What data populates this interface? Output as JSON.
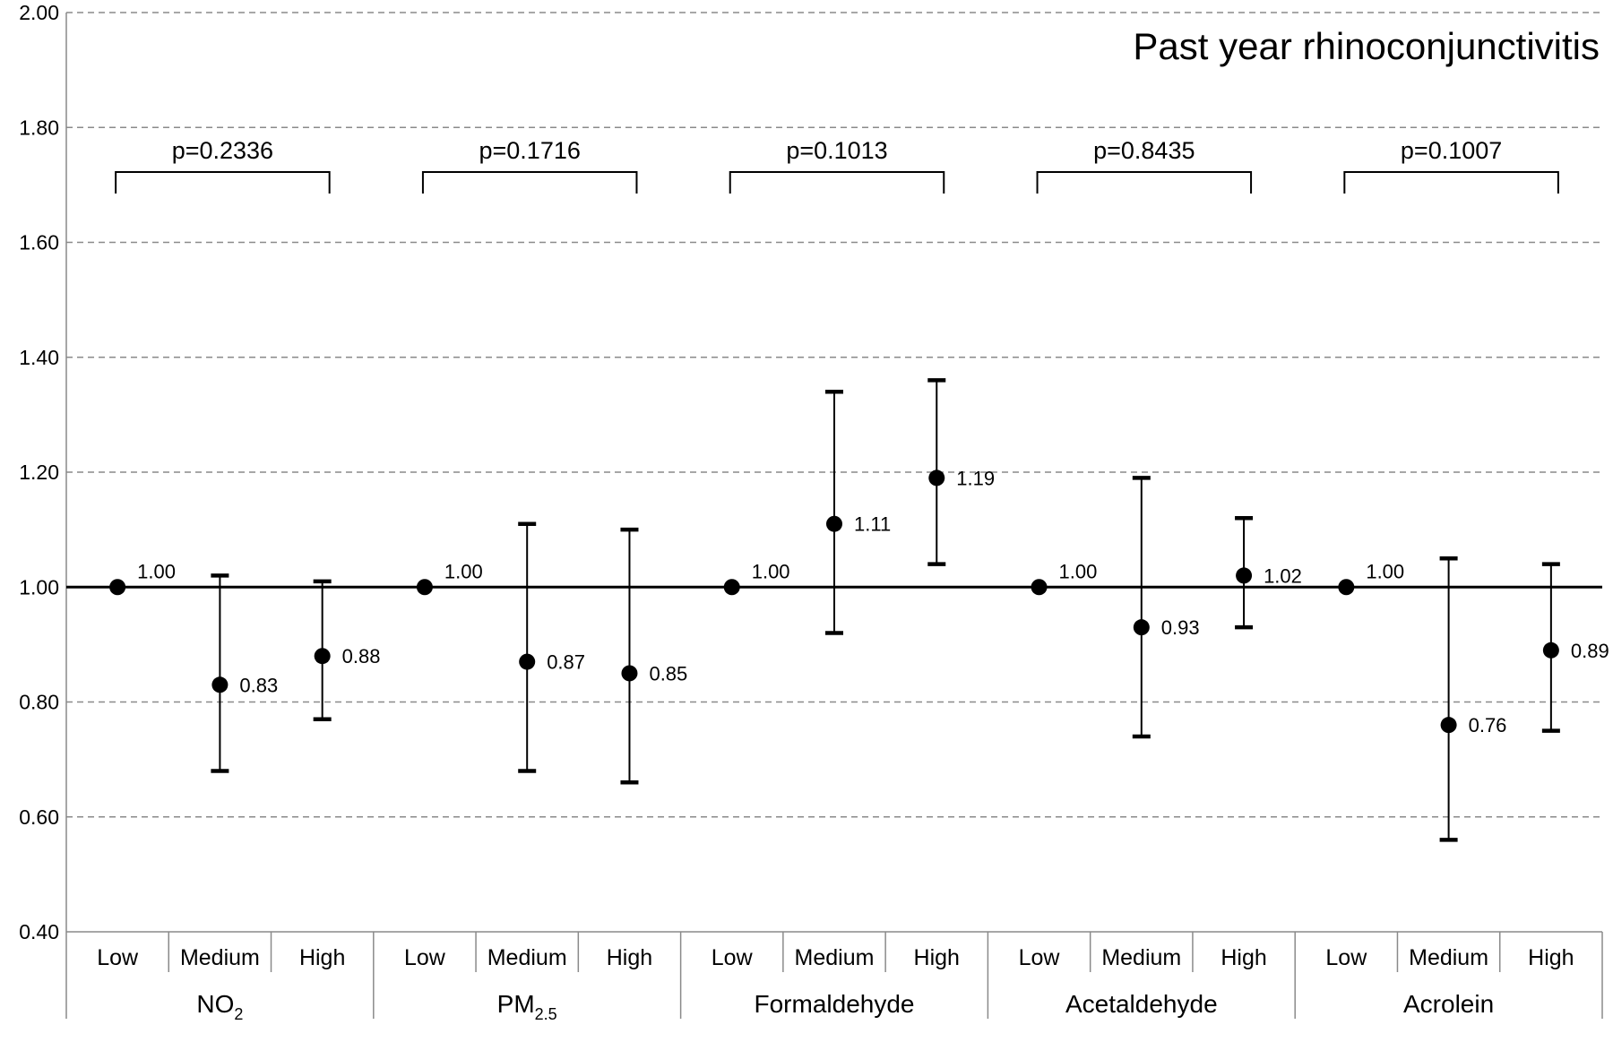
{
  "chart_data": {
    "type": "scatter",
    "title": "Past year rhinoconjunctivitis",
    "ylim": [
      0.4,
      2.0
    ],
    "yticks": [
      "0.40",
      "0.60",
      "0.80",
      "1.00",
      "1.20",
      "1.40",
      "1.60",
      "1.80",
      "2.00"
    ],
    "grid": true,
    "reference_line": 1.0,
    "levels": [
      "Low",
      "Medium",
      "High"
    ],
    "groups": [
      {
        "name": "NO",
        "subscript": "2",
        "p_value": "p=0.2336",
        "points": [
          {
            "level": "Low",
            "value": 1.0,
            "label": "1.00",
            "ci": null
          },
          {
            "level": "Medium",
            "value": 0.83,
            "label": "0.83",
            "ci": [
              0.68,
              1.02
            ]
          },
          {
            "level": "High",
            "value": 0.88,
            "label": "0.88",
            "ci": [
              0.77,
              1.01
            ]
          }
        ]
      },
      {
        "name": "PM",
        "subscript": "2.5",
        "p_value": "p=0.1716",
        "points": [
          {
            "level": "Low",
            "value": 1.0,
            "label": "1.00",
            "ci": null
          },
          {
            "level": "Medium",
            "value": 0.87,
            "label": "0.87",
            "ci": [
              0.68,
              1.11
            ]
          },
          {
            "level": "High",
            "value": 0.85,
            "label": "0.85",
            "ci": [
              0.66,
              1.1
            ]
          }
        ]
      },
      {
        "name": "Formaldehyde",
        "subscript": "",
        "p_value": "p=0.1013",
        "points": [
          {
            "level": "Low",
            "value": 1.0,
            "label": "1.00",
            "ci": null
          },
          {
            "level": "Medium",
            "value": 1.11,
            "label": "1.11",
            "ci": [
              0.92,
              1.34
            ]
          },
          {
            "level": "High",
            "value": 1.19,
            "label": "1.19",
            "ci": [
              1.04,
              1.36
            ]
          }
        ]
      },
      {
        "name": "Acetaldehyde",
        "subscript": "",
        "p_value": "p=0.8435",
        "points": [
          {
            "level": "Low",
            "value": 1.0,
            "label": "1.00",
            "ci": null
          },
          {
            "level": "Medium",
            "value": 0.93,
            "label": "0.93",
            "ci": [
              0.74,
              1.19
            ]
          },
          {
            "level": "High",
            "value": 1.02,
            "label": "1.02",
            "ci": [
              0.93,
              1.12
            ]
          }
        ]
      },
      {
        "name": "Acrolein",
        "subscript": "",
        "p_value": "p=0.1007",
        "points": [
          {
            "level": "Low",
            "value": 1.0,
            "label": "1.00",
            "ci": null
          },
          {
            "level": "Medium",
            "value": 0.76,
            "label": "0.76",
            "ci": [
              0.56,
              1.05
            ]
          },
          {
            "level": "High",
            "value": 0.89,
            "label": "0.89",
            "ci": [
              0.75,
              1.04
            ]
          }
        ]
      }
    ]
  }
}
